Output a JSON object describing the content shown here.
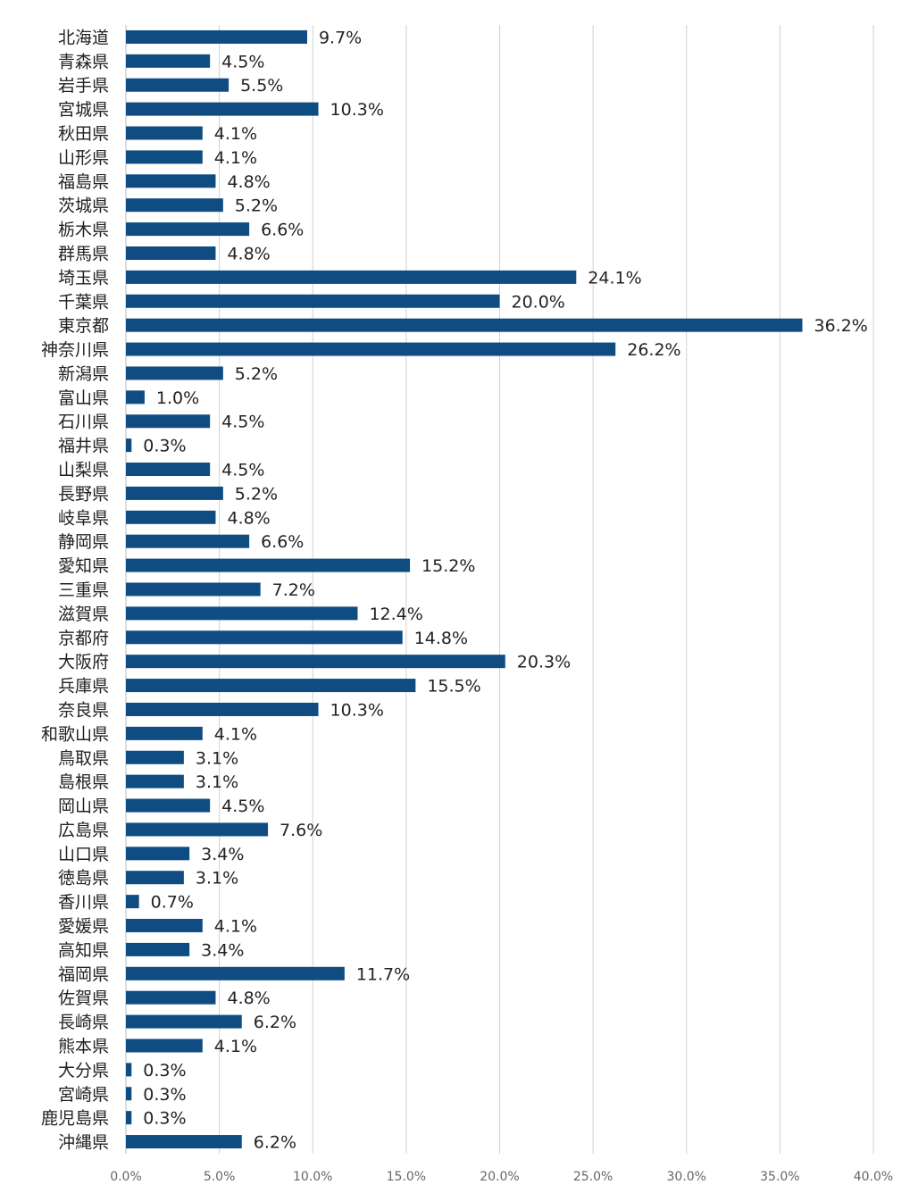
{
  "chart_data": {
    "type": "bar",
    "orientation": "horizontal",
    "title": "",
    "xlabel": "",
    "ylabel": "",
    "xlim": [
      0,
      40
    ],
    "x_ticks": [
      "0.0%",
      "5.0%",
      "10.0%",
      "15.0%",
      "20.0%",
      "25.0%",
      "30.0%",
      "35.0%",
      "40.0%"
    ],
    "grid": "vertical",
    "legend": "none",
    "bar_color": "#0f4c81",
    "categories": [
      "北海道",
      "青森県",
      "岩手県",
      "宮城県",
      "秋田県",
      "山形県",
      "福島県",
      "茨城県",
      "栃木県",
      "群馬県",
      "埼玉県",
      "千葉県",
      "東京都",
      "神奈川県",
      "新潟県",
      "富山県",
      "石川県",
      "福井県",
      "山梨県",
      "長野県",
      "岐阜県",
      "静岡県",
      "愛知県",
      "三重県",
      "滋賀県",
      "京都府",
      "大阪府",
      "兵庫県",
      "奈良県",
      "和歌山県",
      "鳥取県",
      "島根県",
      "岡山県",
      "広島県",
      "山口県",
      "徳島県",
      "香川県",
      "愛媛県",
      "高知県",
      "福岡県",
      "佐賀県",
      "長崎県",
      "熊本県",
      "大分県",
      "宮崎県",
      "鹿児島県",
      "沖縄県"
    ],
    "values": [
      9.7,
      4.5,
      5.5,
      10.3,
      4.1,
      4.1,
      4.8,
      5.2,
      6.6,
      4.8,
      24.1,
      20.0,
      36.2,
      26.2,
      5.2,
      1.0,
      4.5,
      0.3,
      4.5,
      5.2,
      4.8,
      6.6,
      15.2,
      7.2,
      12.4,
      14.8,
      20.3,
      15.5,
      10.3,
      4.1,
      3.1,
      3.1,
      4.5,
      7.6,
      3.4,
      3.1,
      0.7,
      4.1,
      3.4,
      11.7,
      4.8,
      6.2,
      4.1,
      0.3,
      0.3,
      0.3,
      6.2
    ],
    "value_labels": [
      "9.7%",
      "4.5%",
      "5.5%",
      "10.3%",
      "4.1%",
      "4.1%",
      "4.8%",
      "5.2%",
      "6.6%",
      "4.8%",
      "24.1%",
      "20.0%",
      "36.2%",
      "26.2%",
      "5.2%",
      "1.0%",
      "4.5%",
      "0.3%",
      "4.5%",
      "5.2%",
      "4.8%",
      "6.6%",
      "15.2%",
      "7.2%",
      "12.4%",
      "14.8%",
      "20.3%",
      "15.5%",
      "10.3%",
      "4.1%",
      "3.1%",
      "3.1%",
      "4.5%",
      "7.6%",
      "3.4%",
      "3.1%",
      "0.7%",
      "4.1%",
      "3.4%",
      "11.7%",
      "4.8%",
      "6.2%",
      "4.1%",
      "0.3%",
      "0.3%",
      "0.3%",
      "6.2%"
    ]
  }
}
